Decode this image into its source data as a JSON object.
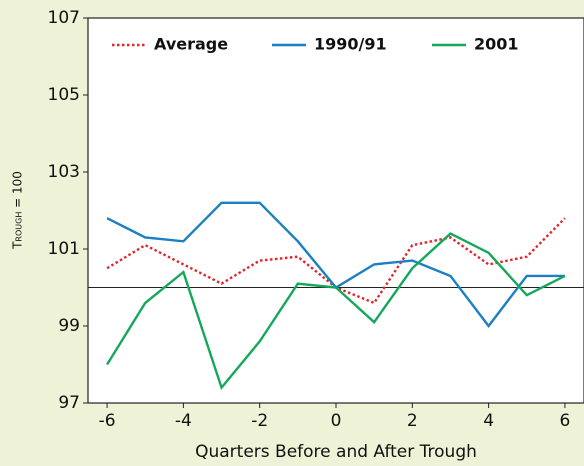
{
  "chart_data": {
    "type": "line",
    "y_label": "Trough = 100",
    "x_label": "Quarters Before and After Trough",
    "x": [
      -6,
      -5,
      -4,
      -3,
      -2,
      -1,
      0,
      1,
      2,
      3,
      4,
      5,
      6
    ],
    "series": [
      {
        "name": "Average",
        "color": "#e0262c",
        "dash": "dotted",
        "values": [
          100.5,
          101.1,
          100.6,
          100.1,
          100.7,
          100.8,
          100.0,
          99.6,
          101.1,
          101.3,
          100.6,
          100.8,
          101.8
        ]
      },
      {
        "name": "1990/91",
        "color": "#1b7fc4",
        "dash": "solid",
        "values": [
          101.8,
          101.3,
          101.2,
          102.2,
          102.2,
          101.2,
          100.0,
          100.6,
          100.7,
          100.3,
          99.0,
          100.3,
          100.3
        ]
      },
      {
        "name": "2001",
        "color": "#14a85a",
        "dash": "solid",
        "values": [
          98.0,
          99.6,
          100.4,
          97.4,
          98.6,
          100.1,
          100.0,
          99.1,
          100.5,
          101.4,
          100.9,
          99.8,
          100.3
        ]
      }
    ],
    "reference_line": 100,
    "xlim": [
      -6.5,
      6.5
    ],
    "xticks": [
      -6,
      -4,
      -2,
      0,
      2,
      4,
      6
    ],
    "ylim": [
      97,
      107
    ],
    "yticks": [
      97,
      99,
      101,
      103,
      105,
      107
    ],
    "legend": "top"
  }
}
